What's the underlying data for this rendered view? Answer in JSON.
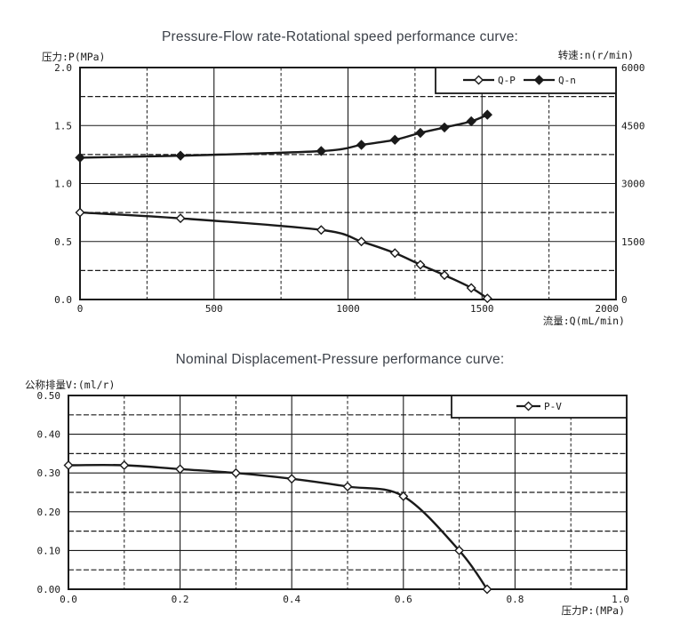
{
  "page": {
    "background": "#ffffff",
    "ink": "#1a1a1a",
    "title_color": "#3c4149"
  },
  "chart_data": [
    {
      "type": "line",
      "title": "Pressure-Flow rate-Rotational speed performance curve:",
      "xlabel": "流量:Q(mL/min)",
      "ylabel_left": "压力:P(MPa)",
      "ylabel_right": "转速:n(r/min)",
      "xlim": [
        0,
        2000
      ],
      "ylim_left": [
        0,
        2.0
      ],
      "ylim_right": [
        0,
        6000
      ],
      "x_ticks": [
        0,
        500,
        1000,
        1500,
        2000
      ],
      "x_tick_labels": [
        "0",
        "500",
        "1000",
        "1500",
        "2000"
      ],
      "y_ticks_left": [
        0,
        0.5,
        1.0,
        1.5,
        2.0
      ],
      "y_tick_labels_left": [
        "0.0",
        "0.5",
        "1.0",
        "1.5",
        "2.0"
      ],
      "y_ticks_right": [
        0,
        1500,
        3000,
        4500,
        6000
      ],
      "y_tick_labels_right": [
        "0",
        "1500",
        "3000",
        "4500",
        "6000"
      ],
      "x_minor_step": 250,
      "y_minor_step": 0.25,
      "grid": "major solid, minor dashed",
      "legend_position": "top-right inside",
      "x": [
        0,
        375,
        900,
        1050,
        1175,
        1270,
        1360,
        1460,
        1520
      ],
      "series": [
        {
          "name": "Q-P",
          "axis": "left",
          "marker": "open-diamond",
          "values": [
            0.75,
            0.7,
            0.6,
            0.5,
            0.4,
            0.3,
            0.21,
            0.1,
            0.01
          ]
        },
        {
          "name": "Q-n",
          "axis": "right",
          "marker": "filled-diamond",
          "values": [
            3670,
            3720,
            3840,
            4000,
            4130,
            4310,
            4450,
            4610,
            4780
          ]
        }
      ]
    },
    {
      "type": "line",
      "title": "Nominal Displacement-Pressure performance curve:",
      "xlabel": "压力P:(MPa)",
      "ylabel_left": "公称排量V:(ml/r)",
      "xlim": [
        0,
        1.0
      ],
      "ylim_left": [
        0,
        0.5
      ],
      "x_ticks": [
        0,
        0.2,
        0.4,
        0.6,
        0.8,
        1.0
      ],
      "x_tick_labels": [
        "0.0",
        "0.2",
        "0.4",
        "0.6",
        "0.8",
        "1.0"
      ],
      "y_ticks_left": [
        0,
        0.1,
        0.2,
        0.3,
        0.4,
        0.5
      ],
      "y_tick_labels_left": [
        "0.00",
        "0.10",
        "0.20",
        "0.30",
        "0.40",
        "0.50"
      ],
      "x_minor_step": 0.1,
      "y_minor_step": 0.05,
      "grid": "major solid, minor dashed",
      "legend_position": "top-right inside",
      "x": [
        0,
        0.1,
        0.2,
        0.3,
        0.4,
        0.5,
        0.6,
        0.7,
        0.75
      ],
      "series": [
        {
          "name": "P-V",
          "axis": "left",
          "marker": "open-diamond",
          "values": [
            0.32,
            0.32,
            0.31,
            0.3,
            0.285,
            0.265,
            0.24,
            0.1,
            0.0
          ]
        }
      ]
    }
  ]
}
